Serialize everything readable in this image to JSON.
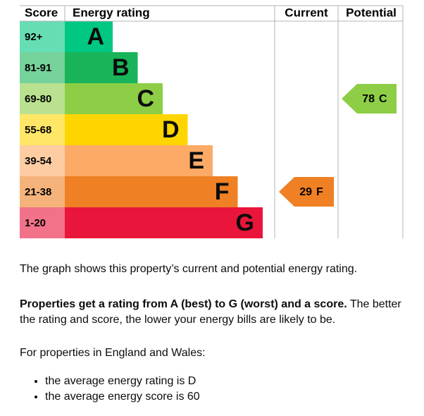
{
  "header": {
    "score": "Score",
    "rating": "Energy rating",
    "current": "Current",
    "potential": "Potential"
  },
  "bands": [
    {
      "range": "92+",
      "letter": "A",
      "color": "#00c781"
    },
    {
      "range": "81-91",
      "letter": "B",
      "color": "#19b459"
    },
    {
      "range": "69-80",
      "letter": "C",
      "color": "#8dce46"
    },
    {
      "range": "55-68",
      "letter": "D",
      "color": "#ffd500"
    },
    {
      "range": "39-54",
      "letter": "E",
      "color": "#fcaa65"
    },
    {
      "range": "21-38",
      "letter": "F",
      "color": "#ef8023"
    },
    {
      "range": "1-20",
      "letter": "G",
      "color": "#e9153b"
    }
  ],
  "current": {
    "score": 29,
    "letter": "F"
  },
  "potential": {
    "score": 78,
    "letter": "C"
  },
  "text": {
    "intro": "The graph shows this property’s current and potential energy rating.",
    "bold": "Properties get a rating from A (best) to G (worst) and a score.",
    "rest": "The better the rating and score, the lower your energy bills are likely to be.",
    "region": "For properties in England and Wales:",
    "bullets": [
      "the average energy rating is D",
      "the average energy score is 60"
    ]
  }
}
